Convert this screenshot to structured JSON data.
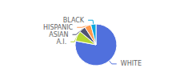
{
  "chart_data": {
    "type": "pie",
    "categories": [
      "WHITE",
      "A.I.",
      "ASIAN",
      "HISPANIC",
      "BLACK"
    ],
    "values": [
      78,
      8,
      5,
      5,
      4
    ]
  }
}
